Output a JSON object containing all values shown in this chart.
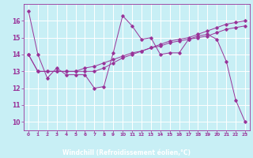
{
  "xlabel": "Windchill (Refroidissement éolien,°C)",
  "background_color": "#c8eff5",
  "axis_label_bg": "#6633aa",
  "line_color": "#993399",
  "grid_color": "#ffffff",
  "x_ticks": [
    0,
    1,
    2,
    3,
    4,
    5,
    6,
    7,
    8,
    9,
    10,
    11,
    12,
    13,
    14,
    15,
    16,
    17,
    18,
    19,
    20,
    21,
    22,
    23
  ],
  "ylim": [
    9.5,
    17.0
  ],
  "xlim": [
    -0.5,
    23.5
  ],
  "yticks": [
    10,
    11,
    12,
    13,
    14,
    15,
    16
  ],
  "series": [
    [
      16.6,
      14.0,
      12.6,
      13.2,
      12.8,
      12.8,
      12.8,
      12.0,
      12.1,
      14.1,
      16.3,
      15.7,
      14.9,
      15.0,
      14.0,
      14.1,
      14.1,
      14.9,
      15.1,
      15.2,
      14.9,
      13.6,
      11.3,
      10.0
    ],
    [
      14.0,
      13.0,
      13.0,
      13.0,
      13.0,
      13.0,
      13.2,
      13.3,
      13.5,
      13.7,
      13.9,
      14.1,
      14.2,
      14.4,
      14.6,
      14.8,
      14.9,
      15.0,
      15.2,
      15.4,
      15.6,
      15.8,
      15.9,
      16.0
    ],
    [
      14.0,
      13.0,
      13.0,
      13.0,
      13.0,
      13.0,
      13.0,
      13.0,
      13.2,
      13.5,
      13.8,
      14.0,
      14.2,
      14.4,
      14.5,
      14.7,
      14.8,
      14.9,
      15.0,
      15.1,
      15.3,
      15.5,
      15.6,
      15.7
    ]
  ]
}
